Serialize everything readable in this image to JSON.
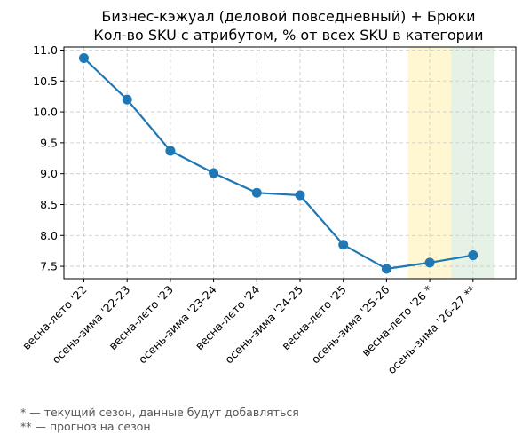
{
  "chart_data": {
    "type": "line",
    "title_lines": [
      "Бизнес-кэжуал (деловой повседневный) + Брюки",
      "Кол-во SKU с атрибутом, % от всех SKU в категории"
    ],
    "xlabel": "",
    "ylabel": "",
    "categories": [
      "весна-лето '22",
      "осень-зима '22-23",
      "весна-лето '23",
      "осень-зима '23-24",
      "весна-лето '24",
      "осень-зима '24-25",
      "весна-лето '25",
      "осень-зима '25-26",
      "весна-лето '26 *",
      "осень-зима '26-27 **"
    ],
    "values": [
      10.87,
      10.2,
      9.37,
      9.01,
      8.69,
      8.65,
      7.85,
      7.46,
      7.56,
      7.68
    ],
    "ylim": [
      7.3,
      11.05
    ],
    "yticks": [
      7.5,
      8.0,
      8.5,
      9.0,
      9.5,
      10.0,
      10.5,
      11.0
    ],
    "ytick_labels": [
      "7.5",
      "8.0",
      "8.5",
      "9.0",
      "9.5",
      "10.0",
      "10.5",
      "11.0"
    ],
    "grid": true,
    "line_color": "#1f77b4",
    "highlights": [
      {
        "category_index": 8,
        "color": "#fff2b3",
        "meaning": "current season"
      },
      {
        "category_index": 9,
        "color": "#d5ead5",
        "meaning": "forecast"
      }
    ]
  },
  "footnotes": [
    "* — текущий сезон, данные будут добавляться",
    "** — прогноз на сезон"
  ]
}
